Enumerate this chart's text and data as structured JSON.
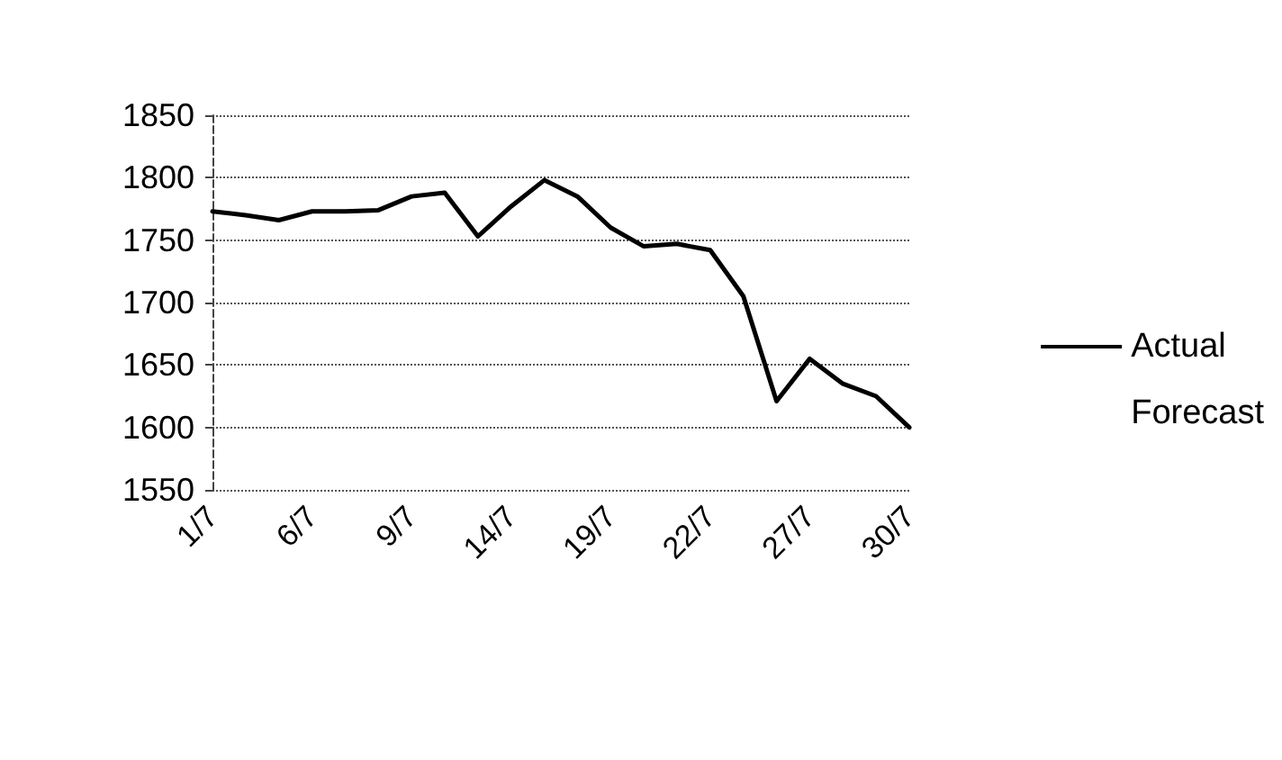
{
  "chart_data": {
    "type": "line",
    "categories": [
      "1/7",
      null,
      null,
      "6/7",
      null,
      null,
      "9/7",
      null,
      null,
      "14/7",
      null,
      null,
      "19/7",
      null,
      null,
      "22/7",
      null,
      null,
      "27/7",
      null,
      null,
      "30/7"
    ],
    "series": [
      {
        "name": "Actual",
        "color": "#000000",
        "values": [
          1773,
          1770,
          1766,
          1773,
          1773,
          1774,
          1785,
          1788,
          1753,
          1777,
          1798,
          1785,
          1760,
          1745,
          1747,
          1742,
          1705,
          1621,
          1655,
          1635,
          1625,
          1600
        ]
      },
      {
        "name": "Forecast",
        "values": [
          null,
          null,
          null,
          null,
          null,
          null,
          null,
          null,
          null,
          null,
          null,
          null,
          null,
          null,
          null,
          null,
          null,
          null,
          null,
          null,
          null,
          null
        ]
      }
    ],
    "ylim": [
      1550,
      1850
    ],
    "yticks": [
      1550,
      1600,
      1650,
      1700,
      1750,
      1800,
      1850
    ],
    "grid": "y",
    "legend": "right",
    "line_style": "solid"
  }
}
